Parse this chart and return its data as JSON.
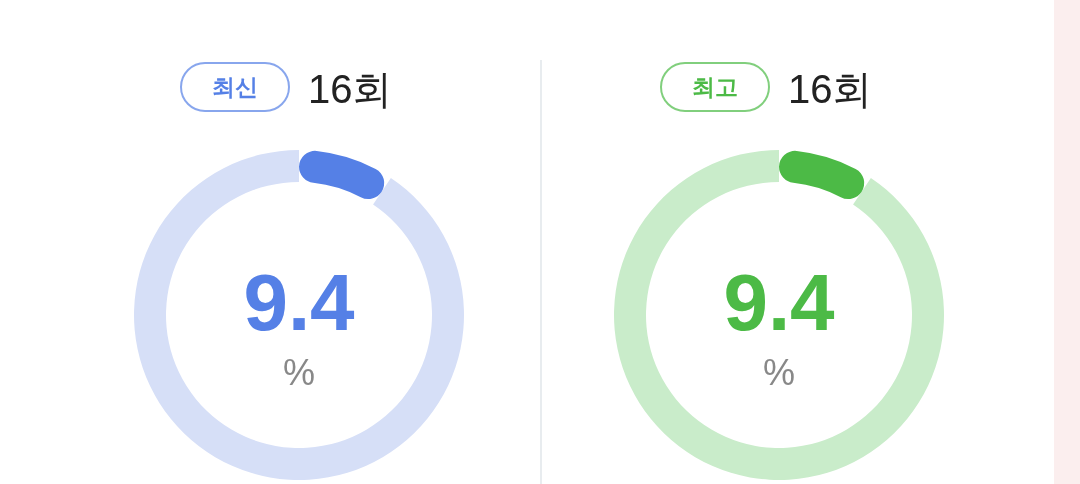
{
  "chart_data": [
    {
      "type": "donut",
      "title": "최신",
      "subtitle": "16회",
      "categories": [
        null,
        null
      ],
      "values": [
        9.4,
        90.6
      ],
      "colors": [
        "#5580e6",
        "#d6dff7"
      ],
      "value_labels": [
        "9.4",
        null
      ],
      "annotations": [
        "%"
      ]
    },
    {
      "type": "donut",
      "title": "최고",
      "subtitle": "16회",
      "categories": [
        null,
        null
      ],
      "values": [
        9.4,
        90.6
      ],
      "colors": [
        "#4cba46",
        "#c9ecca"
      ],
      "value_labels": [
        "9.4",
        null
      ],
      "annotations": [
        "%"
      ]
    }
  ]
}
